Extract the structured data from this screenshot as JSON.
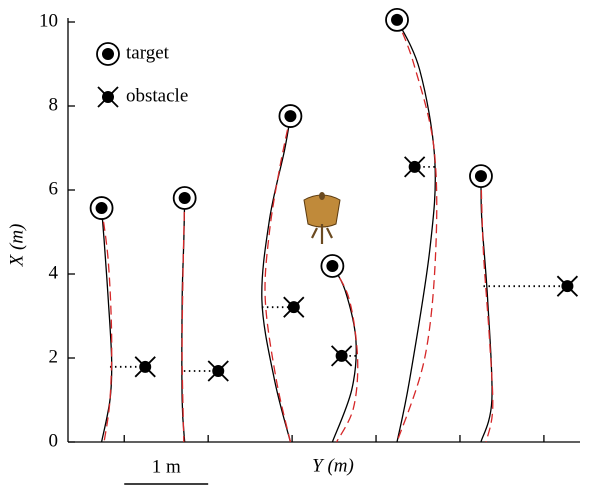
{
  "chart_data": {
    "type": "trajectory",
    "xlabel": "Y (m)",
    "ylabel": "X (m)",
    "xlim": [
      0,
      6.1
    ],
    "ylim": [
      0,
      10
    ],
    "xticks": [
      0.67,
      1.67,
      2.67,
      3.67,
      4.67,
      5.67
    ],
    "xtick_labels": false,
    "yticks": [
      0,
      2,
      4,
      6,
      8,
      10
    ],
    "legend": {
      "target": "target",
      "obstacle": "obstacle"
    },
    "scale_bar": {
      "label": "1 m",
      "length": 1
    },
    "flight_color": "#000000",
    "model_color": "#d62728",
    "trials": [
      {
        "x": [
          0.4,
          0.5,
          0.52,
          0.48,
          0.43,
          0.4
        ],
        "y": [
          0,
          1.0,
          1.95,
          3.38,
          4.81,
          5.57
        ],
        "model_x": [
          0.4,
          0.48,
          0.52,
          0.5,
          0.43
        ],
        "model_y": [
          5.57,
          4.3,
          2.5,
          1.0,
          0
        ],
        "target": [
          0.4,
          5.57
        ],
        "obstacle": [
          0.92,
          1.79
        ],
        "link_from": 0.5
      },
      {
        "x": [
          1.39,
          1.36,
          1.36,
          1.38,
          1.39
        ],
        "y": [
          0,
          1.0,
          3.38,
          4.81,
          5.81
        ],
        "model_x": [
          1.39,
          1.37,
          1.36,
          1.38
        ],
        "model_y": [
          5.81,
          4.0,
          2.0,
          0
        ],
        "target": [
          1.39,
          5.81
        ],
        "obstacle": [
          1.79,
          1.69
        ],
        "link_from": 1.38
      },
      {
        "x": [
          2.65,
          2.46,
          2.31,
          2.4,
          2.58,
          2.65
        ],
        "y": [
          0,
          1.48,
          3.38,
          5.29,
          6.95,
          7.76
        ],
        "model_x": [
          2.65,
          2.52,
          2.4,
          2.35,
          2.48,
          2.65
        ],
        "model_y": [
          7.76,
          6.5,
          5.0,
          3.4,
          1.5,
          0
        ],
        "target": [
          2.65,
          7.76
        ],
        "obstacle": [
          2.69,
          3.21
        ],
        "link_from": 2.31
      },
      {
        "x": [
          3.15,
          3.38,
          3.43,
          3.3,
          3.15
        ],
        "y": [
          0,
          1.24,
          2.43,
          3.62,
          4.19
        ],
        "model_x": [
          3.15,
          3.35,
          3.45,
          3.4,
          3.2
        ],
        "model_y": [
          4.19,
          3.4,
          2.0,
          0.8,
          0
        ],
        "target": [
          3.15,
          4.19
        ],
        "obstacle": [
          3.26,
          2.05
        ],
        "link_from": 3.43
      },
      {
        "x": [
          3.92,
          4.07,
          4.31,
          4.37,
          4.19,
          3.92
        ],
        "y": [
          0,
          1.48,
          4.57,
          6.71,
          8.86,
          10.05
        ],
        "model_x": [
          3.92,
          4.12,
          4.36,
          4.38,
          4.25,
          3.92
        ],
        "model_y": [
          10.05,
          9.0,
          7.0,
          4.5,
          2.0,
          0
        ],
        "target": [
          3.92,
          10.05
        ],
        "obstacle": [
          4.13,
          6.55
        ],
        "link_from": 4.37
      },
      {
        "x": [
          4.92,
          5.05,
          5.0,
          4.93,
          4.92
        ],
        "y": [
          0,
          1.0,
          3.38,
          5.29,
          6.33
        ],
        "model_x": [
          4.92,
          4.95,
          5.02,
          5.06,
          4.98
        ],
        "model_y": [
          6.33,
          4.5,
          2.5,
          0.8,
          0
        ],
        "target": [
          4.92,
          6.33
        ],
        "obstacle": [
          5.95,
          3.71
        ],
        "link_from": 4.95
      }
    ]
  }
}
